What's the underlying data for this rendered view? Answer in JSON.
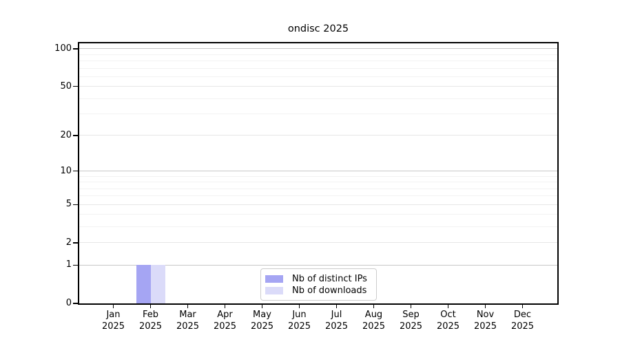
{
  "chart_data": {
    "type": "bar",
    "title": "ondisc 2025",
    "year_label": "2025",
    "categories": [
      "Jan",
      "Feb",
      "Mar",
      "Apr",
      "May",
      "Jun",
      "Jul",
      "Aug",
      "Sep",
      "Oct",
      "Nov",
      "Dec"
    ],
    "series": [
      {
        "name": "Nb of distinct IPs",
        "color": "#a5a5f3",
        "values": [
          0,
          1,
          0,
          0,
          0,
          0,
          0,
          0,
          0,
          0,
          0,
          0
        ]
      },
      {
        "name": "Nb of downloads",
        "color": "#dbdbf9",
        "values": [
          0,
          1,
          0,
          0,
          0,
          0,
          0,
          0,
          0,
          0,
          0,
          0
        ]
      }
    ],
    "yscale": "log1p",
    "ylim": [
      0,
      110.5
    ],
    "ytick_labels": [
      0,
      1,
      2,
      5,
      10,
      20,
      50,
      100
    ],
    "minor_gridlines": [
      3,
      4,
      6,
      7,
      8,
      9,
      30,
      40,
      60,
      70,
      80,
      90
    ],
    "emphasized_gridlines": [
      1,
      10,
      100
    ],
    "legend_position": "lower center",
    "grid": true
  },
  "colors": {
    "grid_minor": "#f2f2f2",
    "grid_major": "#e7e7e7",
    "grid_power": "#c8c8c8",
    "spine": "#000000",
    "background": "#ffffff"
  }
}
